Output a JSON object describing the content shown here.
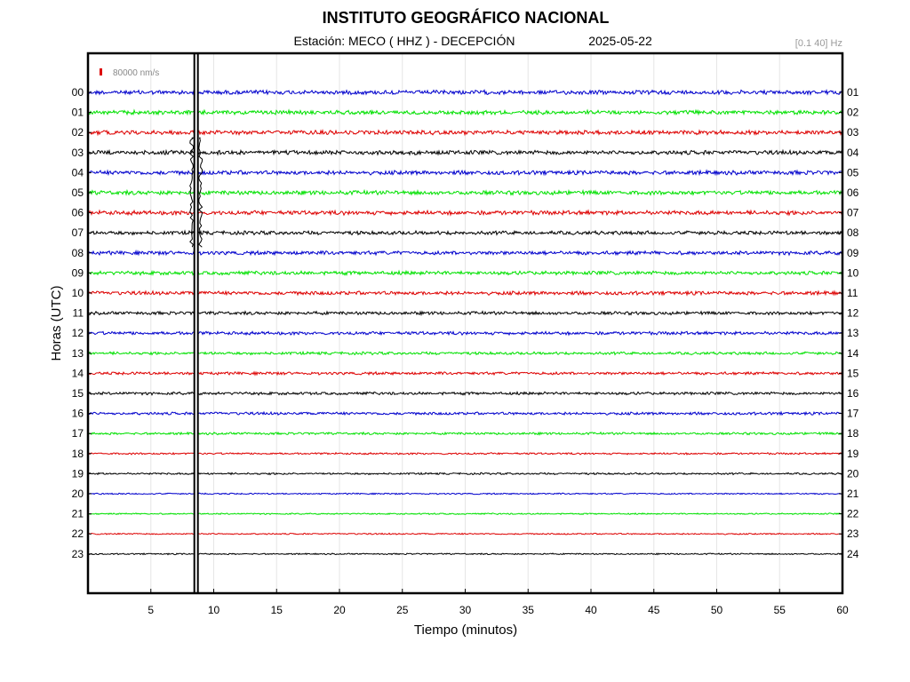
{
  "header": {
    "title": "INSTITUTO GEOGRÁFICO NACIONAL",
    "station": "Estación:  MECO ( HHZ ) - DECEPCIÓN",
    "date": "2025-05-22",
    "filter": "[0.1 40] Hz"
  },
  "scale_label": "80000 nm/s",
  "colors": {
    "cycle": [
      "#0000cc",
      "#00e000",
      "#dd0000",
      "#000000"
    ],
    "scale_bar": "#dd0000",
    "frame": "#000000"
  },
  "chart_data": {
    "type": "line",
    "subtype": "helicorder",
    "xlabel": "Tiempo (minutos)",
    "ylabel": "Horas (UTC)",
    "xlim": [
      0,
      60
    ],
    "xticks": [
      5,
      10,
      15,
      20,
      25,
      30,
      35,
      40,
      45,
      50,
      55,
      60
    ],
    "left_ticks": [
      "00",
      "01",
      "02",
      "03",
      "04",
      "05",
      "06",
      "07",
      "08",
      "09",
      "10",
      "11",
      "12",
      "13",
      "14",
      "15",
      "16",
      "17",
      "18",
      "19",
      "20",
      "21",
      "22",
      "23"
    ],
    "right_ticks": [
      "01",
      "02",
      "03",
      "04",
      "05",
      "06",
      "07",
      "08",
      "09",
      "10",
      "11",
      "12",
      "13",
      "14",
      "15",
      "16",
      "17",
      "18",
      "19",
      "20",
      "21",
      "22",
      "23",
      "24"
    ],
    "grid": true,
    "noise_level": [
      0.9,
      0.9,
      0.9,
      0.9,
      0.9,
      0.9,
      0.9,
      0.8,
      0.8,
      0.8,
      0.8,
      0.7,
      0.7,
      0.6,
      0.6,
      0.6,
      0.6,
      0.5,
      0.4,
      0.4,
      0.3,
      0.3,
      0.3,
      0.3
    ],
    "event": {
      "minute": 8.6,
      "start_hour_row": 2,
      "end_hour_row": 7,
      "saturated": true
    }
  }
}
